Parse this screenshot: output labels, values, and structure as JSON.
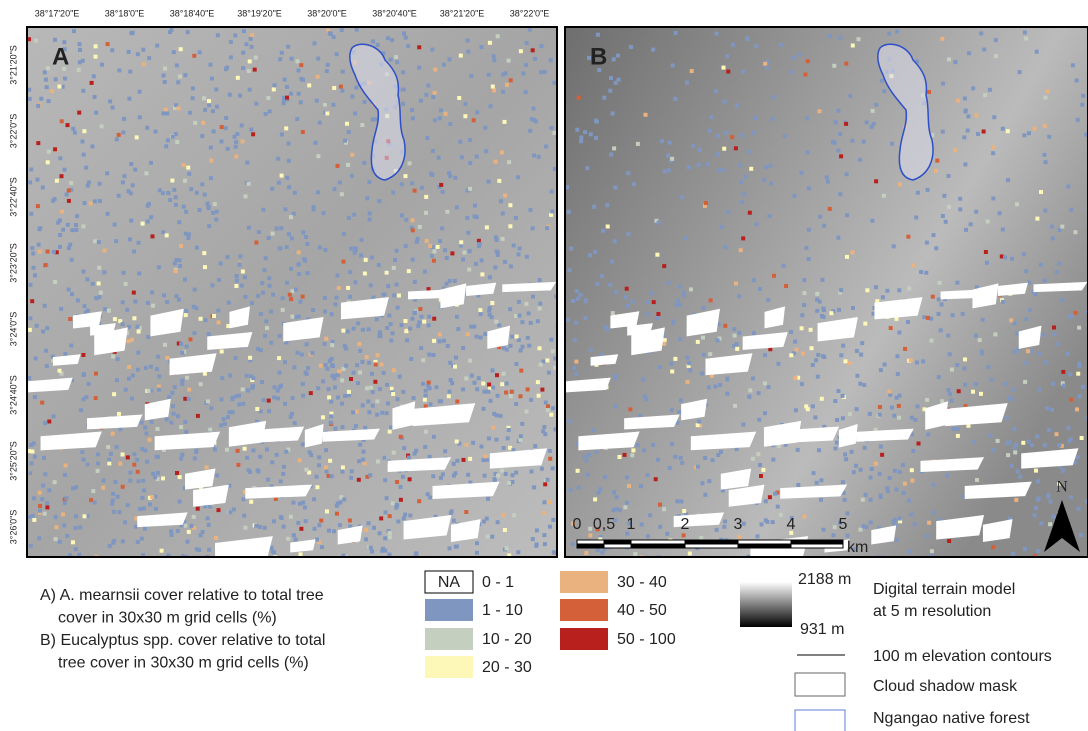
{
  "map": {
    "longitude_labels": [
      "38°17'20\"E",
      "38°18'0\"E",
      "38°18'40\"E",
      "38°19'20\"E",
      "38°20'0\"E",
      "38°20'40\"E",
      "38°21'20\"E",
      "38°22'0\"E"
    ],
    "latitude_labels": [
      "3°21'20\"S",
      "3°22'0\"S",
      "3°22'40\"S",
      "3°23'20\"S",
      "3°24'0\"S",
      "3°24'40\"S",
      "3°25'20\"S",
      "3°26'0\"S"
    ],
    "panels": [
      {
        "label": "A"
      },
      {
        "label": "B"
      }
    ],
    "scale_bar": {
      "ticks": [
        "0",
        "0,5",
        "1",
        "2",
        "3",
        "4",
        "5"
      ],
      "unit": "km"
    },
    "north": "N",
    "caption_lines": [
      "A) A. mearnsii cover relative to total tree",
      "cover  in 30x30 m grid cells (%)",
      "B) Eucalyptus spp. cover relative to total",
      "tree cover in 30x30 m grid cells (%)"
    ],
    "legend": {
      "na_label": "NA",
      "classes": [
        {
          "label": "0 - 1",
          "color": "#ffffff"
        },
        {
          "label": "1 - 10",
          "color": "#7f97c0"
        },
        {
          "label": "10 - 20",
          "color": "#c5cfc0"
        },
        {
          "label": "20 - 30",
          "color": "#fdf8b8"
        },
        {
          "label": "30 - 40",
          "color": "#e9b27f"
        },
        {
          "label": "40 - 50",
          "color": "#d4603a"
        },
        {
          "label": "50 - 100",
          "color": "#b8201e"
        }
      ],
      "dtm_max": "2188 m",
      "dtm_min": "931 m",
      "dtm_lines": [
        "Digital terrain model",
        "at 5 m resolution"
      ],
      "contours": "100 m elevation contours",
      "cloud_mask": "Cloud shadow mask",
      "forest": "Ngangao native forest"
    }
  }
}
